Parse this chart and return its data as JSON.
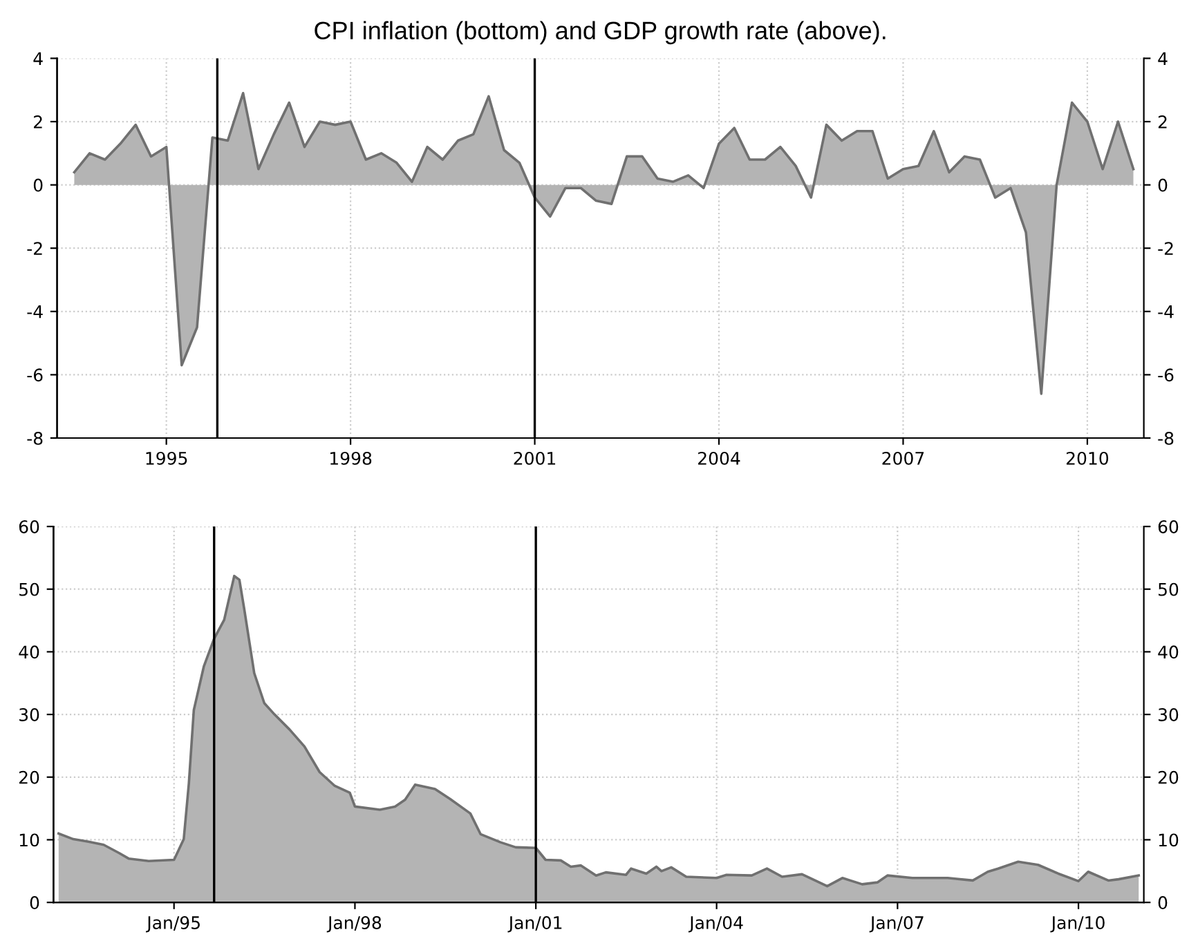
{
  "chart_data": [
    {
      "type": "area",
      "title": "CPI inflation (bottom) and GDP growth rate (above).",
      "grid": true,
      "x": [
        1993.5,
        1993.75,
        1994.0,
        1994.25,
        1994.5,
        1994.75,
        1995.0,
        1995.25,
        1995.5,
        1995.75,
        1996.0,
        1996.25,
        1996.5,
        1996.75,
        1997.0,
        1997.25,
        1997.5,
        1997.75,
        1998.0,
        1998.25,
        1998.5,
        1998.75,
        1999.0,
        1999.25,
        1999.5,
        1999.75,
        2000.0,
        2000.25,
        2000.5,
        2000.75,
        2001.0,
        2001.25,
        2001.5,
        2001.75,
        2002.0,
        2002.25,
        2002.5,
        2002.75,
        2003.0,
        2003.25,
        2003.5,
        2003.75,
        2004.0,
        2004.25,
        2004.5,
        2004.75,
        2005.0,
        2005.25,
        2005.5,
        2005.75,
        2006.0,
        2006.25,
        2006.5,
        2006.75,
        2007.0,
        2007.25,
        2007.5,
        2007.75,
        2008.0,
        2008.25,
        2008.5,
        2008.75,
        2009.0,
        2009.25,
        2009.5,
        2009.75,
        2010.0,
        2010.25,
        2010.5,
        2010.75
      ],
      "series": [
        {
          "color": "#707070",
          "values": [
            0.4,
            1.0,
            0.8,
            1.3,
            1.9,
            0.9,
            1.2,
            -5.7,
            -4.5,
            1.5,
            1.4,
            2.9,
            0.5,
            1.6,
            2.6,
            1.2,
            2.0,
            1.9,
            2.0,
            0.8,
            1.0,
            0.7,
            0.1,
            1.2,
            0.8,
            1.4,
            1.6,
            2.8,
            1.1,
            0.7,
            -0.4,
            -1.0,
            -0.1,
            -0.1,
            -0.5,
            -0.6,
            0.9,
            0.9,
            0.2,
            0.1,
            0.3,
            -0.1,
            1.3,
            1.8,
            0.8,
            0.8,
            1.2,
            0.6,
            -0.4,
            1.9,
            1.4,
            1.7,
            1.7,
            0.2,
            0.5,
            0.6,
            1.7,
            0.4,
            0.9,
            0.8,
            -0.4,
            -0.1,
            -1.5,
            -6.6,
            0.0,
            2.6,
            2.0,
            0.5,
            2.0,
            0.5
          ]
        }
      ],
      "xlim": [
        1993.22,
        2010.92
      ],
      "xticks": [
        1995,
        1998,
        2001,
        2004,
        2007,
        2010
      ],
      "ylim": [
        -8,
        4
      ],
      "yticks": [
        -8,
        -6,
        -4,
        -2,
        0,
        2,
        4
      ],
      "y2lim": [
        -8,
        4
      ],
      "y2ticks": [
        -8,
        -6,
        -4,
        -2,
        0,
        2,
        4
      ],
      "ref_lines": [
        {
          "axis": "x",
          "value": 1995.83,
          "color": "#000000"
        },
        {
          "axis": "x",
          "value": 2001.0,
          "color": "#000000"
        }
      ]
    },
    {
      "type": "area",
      "grid": true,
      "series": [
        {
          "color": "#707070",
          "x": [
            "1993-02",
            "1993-05",
            "1993-08",
            "1993-11",
            "1994-02",
            "1994-04",
            "1994-08",
            "1995-01",
            "1995-03",
            "1995-04",
            "1995-05",
            "1995-07",
            "1995-09",
            "1995-11",
            "1996-01",
            "1996-02",
            "1996-03",
            "1996-05",
            "1996-07",
            "1996-09",
            "1996-12",
            "1997-03",
            "1997-06",
            "1997-09",
            "1997-12",
            "1998-01",
            "1998-06",
            "1998-09",
            "1998-11",
            "1999-01",
            "1999-05",
            "1999-08",
            "1999-12",
            "2000-02",
            "2000-06",
            "2000-09",
            "2001-01",
            "2001-03",
            "2001-06",
            "2001-08",
            "2001-10",
            "2002-01",
            "2002-03",
            "2002-07",
            "2002-08",
            "2002-11",
            "2003-01",
            "2003-02",
            "2003-04",
            "2003-07",
            "2004-01",
            "2004-03",
            "2004-08",
            "2004-11",
            "2005-02",
            "2005-06",
            "2005-11",
            "2006-02",
            "2006-06",
            "2006-09",
            "2006-11",
            "2007-04",
            "2007-11",
            "2008-04",
            "2008-07",
            "2008-09",
            "2009-01",
            "2009-05",
            "2009-09",
            "2010-01",
            "2010-03",
            "2010-07",
            "2010-09",
            "2011-01"
          ],
          "values": [
            11.0,
            10.1,
            9.7,
            9.2,
            7.9,
            7.0,
            6.6,
            6.8,
            10.1,
            19.0,
            30.7,
            37.7,
            42.1,
            45.1,
            52.1,
            51.5,
            46.9,
            36.6,
            31.8,
            30.0,
            27.6,
            24.9,
            20.8,
            18.6,
            17.5,
            15.3,
            14.8,
            15.3,
            16.4,
            18.8,
            18.1,
            16.5,
            14.2,
            10.9,
            9.6,
            8.8,
            8.7,
            6.8,
            6.7,
            5.7,
            5.9,
            4.3,
            4.8,
            4.4,
            5.4,
            4.6,
            5.7,
            5.0,
            5.6,
            4.1,
            3.9,
            4.4,
            4.3,
            5.4,
            4.1,
            4.5,
            2.6,
            3.9,
            2.9,
            3.2,
            4.3,
            3.9,
            3.9,
            3.5,
            4.9,
            5.4,
            6.5,
            6.0,
            4.6,
            3.4,
            4.9,
            3.5,
            3.7,
            4.3
          ]
        }
      ],
      "xlim": [
        "1993-01",
        "2011-02"
      ],
      "xticks": [
        {
          "value": "1995-01",
          "label": "Jan/95"
        },
        {
          "value": "1998-01",
          "label": "Jan/98"
        },
        {
          "value": "2001-01",
          "label": "Jan/01"
        },
        {
          "value": "2004-01",
          "label": "Jan/04"
        },
        {
          "value": "2007-01",
          "label": "Jan/07"
        },
        {
          "value": "2010-01",
          "label": "Jan/10"
        }
      ],
      "ylim": [
        0,
        60
      ],
      "yticks": [
        0,
        10,
        20,
        30,
        40,
        50,
        60
      ],
      "y2lim": [
        0,
        60
      ],
      "y2ticks": [
        0,
        10,
        20,
        30,
        40,
        50,
        60
      ],
      "ref_lines": [
        {
          "axis": "x",
          "value": "1995-09",
          "color": "#000000"
        },
        {
          "axis": "x",
          "value": "2001-01",
          "color": "#000000"
        }
      ]
    }
  ]
}
